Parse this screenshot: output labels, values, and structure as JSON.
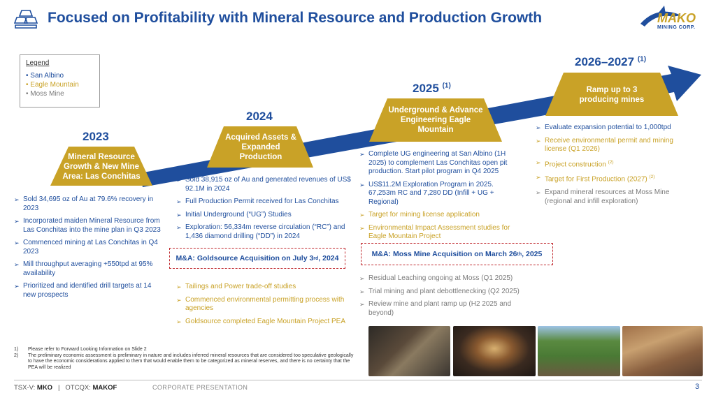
{
  "header": {
    "title": "Focused on Profitability with Mineral Resource and Production Growth",
    "logo_text": "MAKO",
    "logo_sub": "MINING CORP."
  },
  "legend": {
    "title": "Legend",
    "items": [
      "San Albino",
      "Eagle Mountain",
      "Moss Mine"
    ]
  },
  "colors": {
    "blue": "#1f4e9d",
    "gold": "#c9a227",
    "gray": "#7a7a7a",
    "red": "#c0282d"
  },
  "milestones": [
    {
      "year": "2023",
      "year_note": "",
      "label": "Mineral Resource Growth & New Mine Area: Las Conchitas",
      "bullets": [
        "Sold 34,695 oz of Au at 79.6% recovery in 2023",
        "Incorporated maiden Mineral Resource from Las Conchitas into the mine plan in Q3 2023",
        "Commenced mining at Las Conchitas in Q4 2023",
        "Mill throughput averaging +550tpd at 95% availability",
        "Prioritized and identified drill targets at 14 new prospects"
      ]
    },
    {
      "year": "2024",
      "year_note": "",
      "label": "Acquired Assets & Expanded Production",
      "bullets": [
        "Sold 38,915 oz of Au and generated revenues of US$ 92.1M in 2024",
        "Full Production Permit received for Las Conchitas",
        "Initial Underground (“UG”) Studies",
        "Exploration: 56,334m reverse circulation (“RC”) and 1,436 diamond drilling (“DD”) in 2024"
      ],
      "ma": {
        "prefix": "M&A: Goldsource Acquisition on July 3",
        "sup": "rd",
        "suffix": ", 2024"
      },
      "bullets_after": [
        "Tailings and Power trade-off studies",
        "Commenced environmental permitting process with agencies",
        "Goldsource completed Eagle Mountain Project PEA"
      ]
    },
    {
      "year": "2025",
      "year_note": "(1)",
      "label": "Underground & Advance Engineering Eagle Mountain",
      "bullets": [
        "Complete UG engineering at San Albino (1H 2025) to complement Las Conchitas open pit production. Start pilot program in Q4 2025",
        "US$11.2M Exploration Program in 2025. 67,253m RC and 7,280 DD (Infill + UG + Regional)",
        "Target for mining license application",
        "Environmental Impact Assessment studies for Eagle Mountain Project"
      ],
      "ma": {
        "prefix": "M&A: Moss Mine Acquisition on March 26",
        "sup": "th",
        "suffix": ", 2025"
      },
      "bullets_after": [
        "Residual Leaching ongoing at Moss (Q1 2025)",
        "Trial mining and plant debottlenecking (Q2 2025)",
        "Review mine and plant ramp up (H2 2025 and beyond)"
      ]
    },
    {
      "year": "2026–2027",
      "year_note": "(1)",
      "label": "Ramp up to 3 producing mines",
      "bullets": [
        "Evaluate expansion potential to 1,000tpd",
        "Receive environmental permit and mining license (Q1 2026)",
        "Project construction",
        "Target for First Production (2027)",
        "Expand mineral resources at Moss Mine (regional and infill exploration)"
      ],
      "bullet_notes": [
        "",
        "",
        "(2)",
        "(2)",
        ""
      ]
    }
  ],
  "footnotes": [
    {
      "num": "1)",
      "text": "Please refer to Forward Looking Information on Slide 2"
    },
    {
      "num": "2)",
      "text": "The preliminary economic assessment is preliminary in nature and includes inferred mineral resources that are considered too speculative geologically to have the economic considerations applied to them that would enable them to be categorized as mineral reserves, and there is no certainty that the PEA will be realized"
    }
  ],
  "footer": {
    "tsxv_label": "TSX-V:",
    "tsxv_ticker": "MKO",
    "separator": "|",
    "otcqx_label": "OTCQX:",
    "otcqx_ticker": "MAKOF",
    "center": "CORPORATE PRESENTATION",
    "page": "3"
  }
}
